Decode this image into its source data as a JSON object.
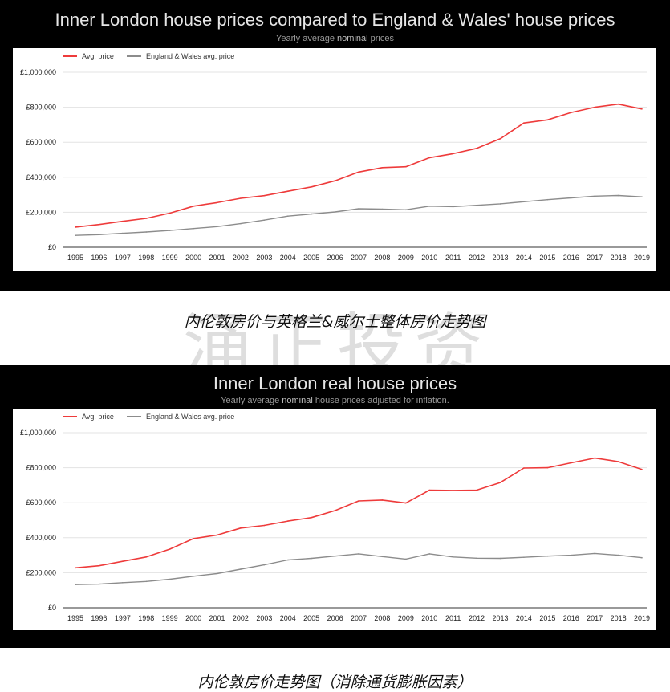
{
  "panels": [
    {
      "title": "Inner London house prices compared to England & Wales' house prices",
      "subtitle_prefix": "Yearly average ",
      "subtitle_bold": "nominal",
      "subtitle_suffix": " prices",
      "caption": "内伦敦房价与英格兰&威尔士整体房价走势图"
    },
    {
      "title": "Inner London real house prices",
      "subtitle_prefix": "Yearly average ",
      "subtitle_bold": "nominal",
      "subtitle_suffix": " house prices adjusted for inflation.",
      "caption": "内伦敦房价走势图（消除通货膨胀因素）"
    }
  ],
  "watermark": "涌正投资",
  "colors": {
    "avg": "#ee3b3b",
    "ew": "#8c8c8c"
  },
  "chart_data": [
    {
      "type": "line",
      "title": "Inner London house prices compared to England & Wales' house prices",
      "xlabel": "",
      "ylabel": "",
      "x": [
        "1995",
        "1996",
        "1997",
        "1998",
        "1999",
        "2000",
        "2001",
        "2002",
        "2003",
        "2004",
        "2005",
        "2006",
        "2007",
        "2008",
        "2009",
        "2010",
        "2011",
        "2012",
        "2013",
        "2014",
        "2015",
        "2016",
        "2017",
        "2018",
        "2019"
      ],
      "yticks": [
        "£0",
        "£200,000",
        "£400,000",
        "£600,000",
        "£800,000",
        "£1,000,000"
      ],
      "ylim": [
        0,
        1000000
      ],
      "grid": true,
      "legend": "top-left",
      "series": [
        {
          "name": "Avg. price",
          "values": [
            115000,
            130000,
            148000,
            165000,
            195000,
            235000,
            255000,
            280000,
            295000,
            320000,
            345000,
            380000,
            430000,
            455000,
            460000,
            512000,
            535000,
            565000,
            620000,
            710000,
            728000,
            770000,
            800000,
            818000,
            790000
          ]
        },
        {
          "name": "England & Wales avg. price",
          "values": [
            68000,
            72000,
            80000,
            87000,
            96000,
            107000,
            118000,
            135000,
            155000,
            178000,
            190000,
            202000,
            220000,
            218000,
            214000,
            235000,
            232000,
            240000,
            248000,
            260000,
            272000,
            282000,
            292000,
            296000,
            288000
          ]
        }
      ]
    },
    {
      "type": "line",
      "title": "Inner London real house prices",
      "xlabel": "",
      "ylabel": "",
      "x": [
        "1995",
        "1996",
        "1997",
        "1998",
        "1999",
        "2000",
        "2001",
        "2002",
        "2003",
        "2004",
        "2005",
        "2006",
        "2007",
        "2008",
        "2009",
        "2010",
        "2011",
        "2012",
        "2013",
        "2014",
        "2015",
        "2016",
        "2017",
        "2018",
        "2019"
      ],
      "yticks": [
        "£0",
        "£200,000",
        "£400,000",
        "£600,000",
        "£800,000",
        "£1,000,000"
      ],
      "ylim": [
        0,
        1000000
      ],
      "grid": true,
      "legend": "top-left",
      "series": [
        {
          "name": "Avg. price",
          "values": [
            228000,
            240000,
            265000,
            290000,
            335000,
            395000,
            415000,
            455000,
            470000,
            495000,
            515000,
            555000,
            610000,
            615000,
            598000,
            672000,
            670000,
            672000,
            715000,
            798000,
            800000,
            828000,
            855000,
            835000,
            790000
          ]
        },
        {
          "name": "England & Wales avg. price",
          "values": [
            132000,
            135000,
            143000,
            150000,
            163000,
            180000,
            195000,
            220000,
            245000,
            273000,
            282000,
            295000,
            308000,
            292000,
            278000,
            308000,
            290000,
            283000,
            282000,
            288000,
            295000,
            300000,
            310000,
            300000,
            286000
          ]
        }
      ]
    }
  ]
}
